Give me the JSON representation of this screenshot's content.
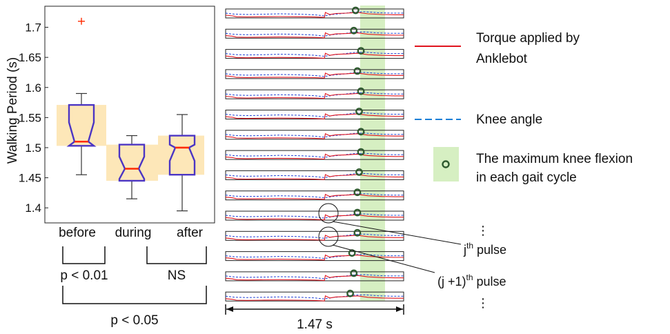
{
  "colors": {
    "box_outline": "#4b35c4",
    "median": "#ff2a00",
    "outlier": "#ff2a00",
    "whisker": "#333333",
    "highlight": "#fde7b8",
    "green_band": "#d6efc2",
    "torque_line": "#e0141e",
    "knee_line": "#1e3fd6",
    "marker": "#2f5a2f"
  },
  "chart_data": [
    {
      "type": "box",
      "ylabel": "Walking Period (s)",
      "ylim": [
        1.375,
        1.735
      ],
      "yticks": [
        "1.4",
        "1.45",
        "1.5",
        "1.55",
        "1.6",
        "1.65",
        "1.7"
      ],
      "categories": [
        "before",
        "during",
        "after"
      ],
      "notched": true,
      "boxes": [
        {
          "label": "before",
          "whisker_low": 1.455,
          "q1": 1.503,
          "median": 1.51,
          "q3": 1.571,
          "whisker_high": 1.59,
          "notch_low": 1.503,
          "notch_high": 1.542,
          "outliers": [
            1.71
          ]
        },
        {
          "label": "during",
          "whisker_low": 1.415,
          "q1": 1.445,
          "median": 1.465,
          "q3": 1.505,
          "whisker_high": 1.52,
          "notch_low": 1.448,
          "notch_high": 1.485,
          "outliers": []
        },
        {
          "label": "after",
          "whisker_low": 1.395,
          "q1": 1.455,
          "median": 1.5,
          "q3": 1.52,
          "whisker_high": 1.555,
          "notch_low": 1.478,
          "notch_high": 1.505,
          "outliers": []
        }
      ],
      "comparisons": [
        {
          "between": [
            "before",
            "during"
          ],
          "label": "p < 0.01"
        },
        {
          "between": [
            "during",
            "after"
          ],
          "label": "NS"
        },
        {
          "between": [
            "before",
            "after"
          ],
          "label": "p < 0.05"
        }
      ]
    },
    {
      "type": "line",
      "description_free": true,
      "n_cycles": 15,
      "cycles": [
        {
          "max_flexion_x": 0.73
        },
        {
          "max_flexion_x": 0.72
        },
        {
          "max_flexion_x": 0.76
        },
        {
          "max_flexion_x": 0.74
        },
        {
          "max_flexion_x": 0.76
        },
        {
          "max_flexion_x": 0.75
        },
        {
          "max_flexion_x": 0.76
        },
        {
          "max_flexion_x": 0.76
        },
        {
          "max_flexion_x": 0.75
        },
        {
          "max_flexion_x": 0.74
        },
        {
          "max_flexion_x": 0.74
        },
        {
          "max_flexion_x": 0.74
        },
        {
          "max_flexion_x": 0.71
        },
        {
          "max_flexion_x": 0.72
        },
        {
          "max_flexion_x": 0.7
        }
      ],
      "xlabel": "1.47 s",
      "legend": [
        {
          "style": "solid-red",
          "label_line1": "Torque applied by",
          "label_line2": "Anklebot"
        },
        {
          "style": "dashed-blue",
          "label_line1": "Knee angle",
          "label_line2": ""
        },
        {
          "style": "circle-green-band",
          "label_line1": "The maximum knee flexion",
          "label_line2": "in each gait cycle"
        }
      ],
      "annotations": [
        {
          "text": "j",
          "sup": "th",
          "rest": " pulse"
        },
        {
          "text": "(j +1)",
          "sup": "th",
          "rest": " pulse"
        }
      ],
      "ellipsis": "⋮"
    }
  ]
}
